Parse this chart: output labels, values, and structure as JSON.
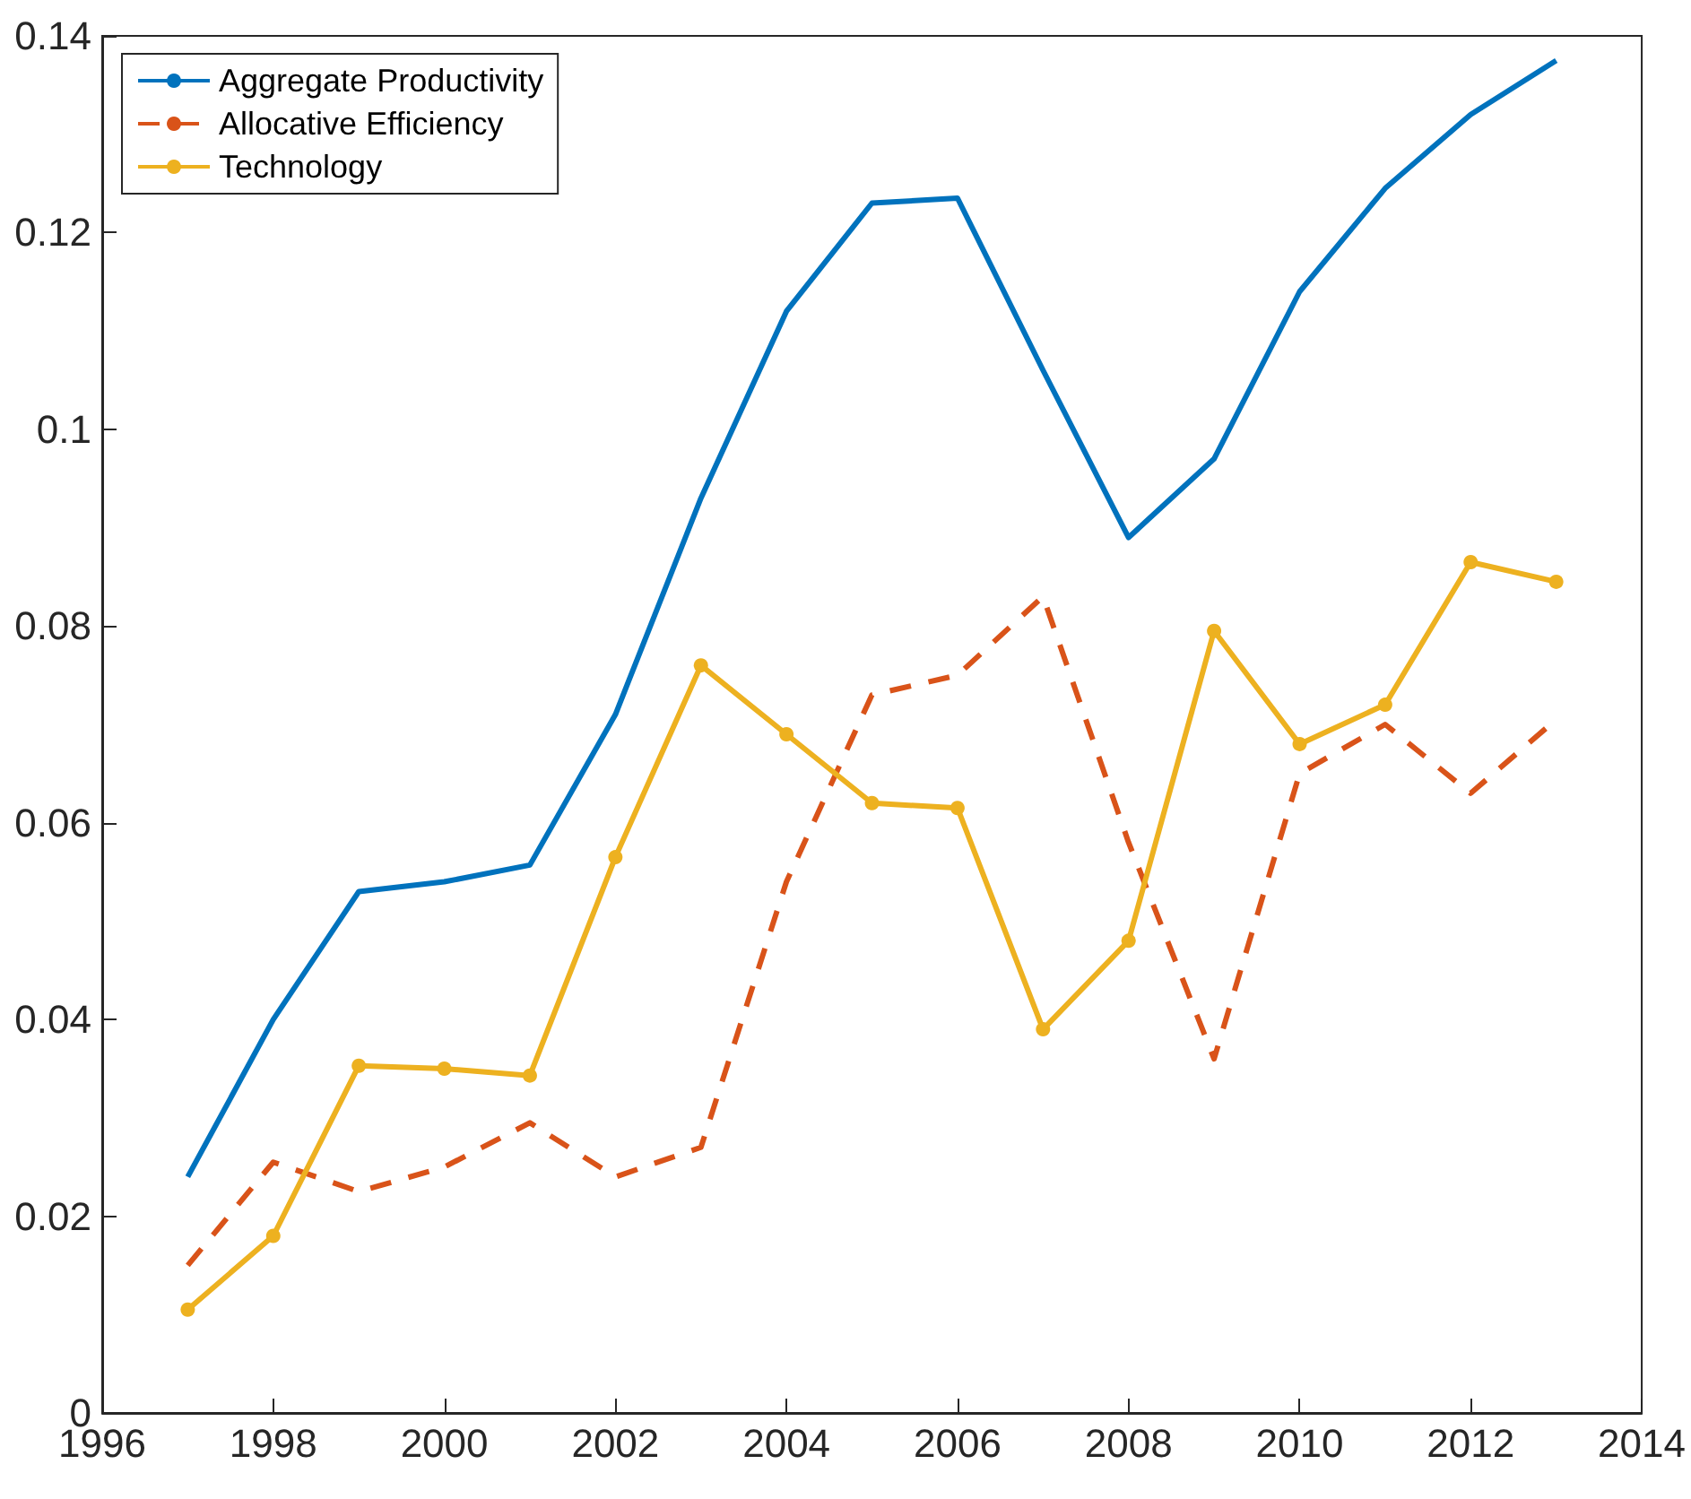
{
  "chart_data": {
    "type": "line",
    "x": [
      1997,
      1998,
      1999,
      2000,
      2001,
      2002,
      2003,
      2004,
      2005,
      2006,
      2007,
      2008,
      2009,
      2010,
      2011,
      2012,
      2013
    ],
    "xlim": [
      1996,
      2014
    ],
    "xticks": [
      1996,
      1998,
      2000,
      2002,
      2004,
      2006,
      2008,
      2010,
      2012,
      2014
    ],
    "ylim": [
      0,
      0.14
    ],
    "yticks": [
      0,
      0.02,
      0.04,
      0.06,
      0.08,
      0.1,
      0.12,
      0.14
    ],
    "grid": false,
    "legend": "top left",
    "series": [
      {
        "name": "Aggregate Productivity",
        "color": "#0072bd",
        "marker": "none",
        "line_style": "solid",
        "values": [
          0.024,
          0.04,
          0.053,
          0.054,
          0.0557,
          0.071,
          0.093,
          0.112,
          0.123,
          0.1235,
          0.106,
          0.089,
          0.097,
          0.114,
          0.1245,
          0.132,
          0.1375
        ]
      },
      {
        "name": "Allocative Efficiency",
        "color": "#d95319",
        "marker": "none",
        "line_style": "dashed",
        "values": [
          0.015,
          0.0255,
          0.0225,
          0.025,
          0.0295,
          0.024,
          0.027,
          0.054,
          0.073,
          0.075,
          0.083,
          0.058,
          0.036,
          0.065,
          0.07,
          0.063,
          0.0705
        ]
      },
      {
        "name": "Technology",
        "color": "#edb120",
        "marker": "circle",
        "line_style": "solid",
        "values": [
          0.0105,
          0.018,
          0.0353,
          0.035,
          0.0343,
          0.0565,
          0.076,
          0.069,
          0.062,
          0.0615,
          0.039,
          0.048,
          0.0795,
          0.068,
          0.072,
          0.0865,
          0.0845
        ]
      }
    ]
  }
}
